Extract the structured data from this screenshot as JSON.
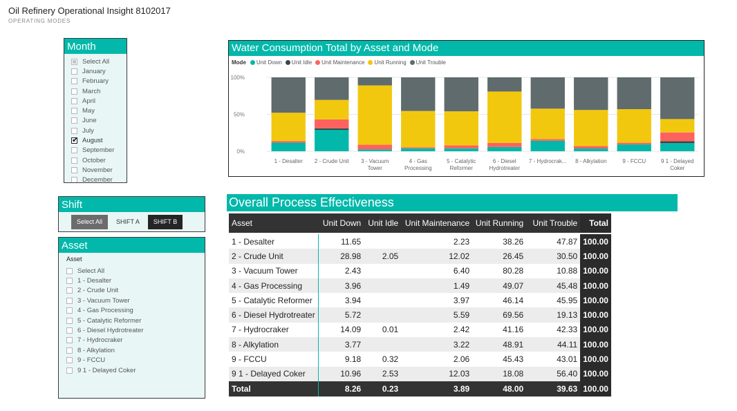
{
  "report": {
    "title": "Oil Refinery Operational Insight 8102017",
    "subtitle": "OPERATING MODES"
  },
  "month_slicer": {
    "title": "Month",
    "items": [
      {
        "label": "Select All",
        "state": "partial"
      },
      {
        "label": "January",
        "state": "off"
      },
      {
        "label": "February",
        "state": "off"
      },
      {
        "label": "March",
        "state": "off"
      },
      {
        "label": "April",
        "state": "off"
      },
      {
        "label": "May",
        "state": "off"
      },
      {
        "label": "June",
        "state": "off"
      },
      {
        "label": "July",
        "state": "off"
      },
      {
        "label": "August",
        "state": "on"
      },
      {
        "label": "September",
        "state": "off"
      },
      {
        "label": "October",
        "state": "off"
      },
      {
        "label": "November",
        "state": "off"
      },
      {
        "label": "December",
        "state": "off"
      }
    ]
  },
  "shift_slicer": {
    "title": "Shift",
    "buttons": [
      {
        "label": "Select All",
        "style": "sel-all"
      },
      {
        "label": "SHIFT A",
        "style": ""
      },
      {
        "label": "SHIFT B",
        "style": "active"
      }
    ]
  },
  "asset_slicer": {
    "title": "Asset",
    "header": "Asset",
    "items": [
      "Select All",
      "1 - Desalter",
      "2 - Crude Unit",
      "3 - Vacuum Tower",
      "4 - Gas Processing",
      "5 - Catalytic Reformer",
      "6 - Diesel Hydrotreater",
      "7 - Hydrocraker",
      "8 - Alkylation",
      "9 - FCCU",
      "9 1 - Delayed Coker"
    ]
  },
  "chart_data": {
    "type": "bar",
    "stacked": "100%",
    "title": "Water Consumption Total by Asset and Mode",
    "legend_title": "Mode",
    "categories": [
      "1 - Desalter",
      "2 - Crude Unit",
      "3 - Vacuum Tower",
      "4 - Gas Processing",
      "5 - Catalytic Reformer",
      "6 - Diesel Hydrotreater",
      "7 - Hydrocrak...",
      "8 - Alkylation",
      "9 - FCCU",
      "9 1 - Delayed Coker"
    ],
    "category_lines": [
      [
        "1 - Desalter"
      ],
      [
        "2 - Crude Unit"
      ],
      [
        "3 - Vacuum",
        "Tower"
      ],
      [
        "4 - Gas",
        "Processing"
      ],
      [
        "5 - Catalytic",
        "Reformer"
      ],
      [
        "6 - Diesel",
        "Hydrotreater"
      ],
      [
        "7 - Hydrocrak..."
      ],
      [
        "8 - Alkylation"
      ],
      [
        "9 - FCCU"
      ],
      [
        "9 1 - Delayed",
        "Coker"
      ]
    ],
    "series": [
      {
        "name": "Unit Down",
        "color": "#01b8aa",
        "values": [
          11.65,
          28.98,
          2.43,
          3.96,
          3.94,
          5.72,
          14.09,
          3.77,
          9.18,
          10.96
        ]
      },
      {
        "name": "Unit Idle",
        "color": "#374649",
        "values": [
          0,
          2.05,
          0,
          0,
          0,
          0,
          0.01,
          0,
          0.32,
          2.53
        ]
      },
      {
        "name": "Unit Maintenance",
        "color": "#fd625e",
        "values": [
          2.23,
          12.02,
          6.4,
          1.49,
          3.97,
          5.59,
          2.42,
          3.22,
          2.06,
          12.03
        ]
      },
      {
        "name": "Unit Running",
        "color": "#f2c80f",
        "values": [
          38.26,
          26.45,
          80.28,
          49.07,
          46.14,
          69.56,
          41.16,
          48.91,
          45.43,
          18.08
        ]
      },
      {
        "name": "Unit Trouble",
        "color": "#5f6b6d",
        "values": [
          47.87,
          30.5,
          10.88,
          45.48,
          45.95,
          19.13,
          42.33,
          44.11,
          43.01,
          56.4
        ]
      }
    ],
    "y_ticks": [
      "100%",
      "50%",
      "0%"
    ],
    "ylim": [
      0,
      100
    ]
  },
  "ope": {
    "title": "Overall Process Effectiveness",
    "columns": [
      "Asset",
      "Unit Down",
      "Unit Idle",
      "Unit Maintenance",
      "Unit Running",
      "Unit Trouble",
      "Total"
    ],
    "rows": [
      [
        "1 - Desalter",
        "11.65",
        "",
        "2.23",
        "38.26",
        "47.87",
        "100.00"
      ],
      [
        "2 - Crude Unit",
        "28.98",
        "2.05",
        "12.02",
        "26.45",
        "30.50",
        "100.00"
      ],
      [
        "3 - Vacuum Tower",
        "2.43",
        "",
        "6.40",
        "80.28",
        "10.88",
        "100.00"
      ],
      [
        "4 - Gas Processing",
        "3.96",
        "",
        "1.49",
        "49.07",
        "45.48",
        "100.00"
      ],
      [
        "5 - Catalytic Reformer",
        "3.94",
        "",
        "3.97",
        "46.14",
        "45.95",
        "100.00"
      ],
      [
        "6 - Diesel Hydrotreater",
        "5.72",
        "",
        "5.59",
        "69.56",
        "19.13",
        "100.00"
      ],
      [
        "7 - Hydrocraker",
        "14.09",
        "0.01",
        "2.42",
        "41.16",
        "42.33",
        "100.00"
      ],
      [
        "8 - Alkylation",
        "3.77",
        "",
        "3.22",
        "48.91",
        "44.11",
        "100.00"
      ],
      [
        "9 - FCCU",
        "9.18",
        "0.32",
        "2.06",
        "45.43",
        "43.01",
        "100.00"
      ],
      [
        "9 1 - Delayed Coker",
        "10.96",
        "2.53",
        "12.03",
        "18.08",
        "56.40",
        "100.00"
      ]
    ],
    "total": [
      "Total",
      "8.26",
      "0.23",
      "3.89",
      "48.00",
      "39.63",
      "100.00"
    ]
  }
}
